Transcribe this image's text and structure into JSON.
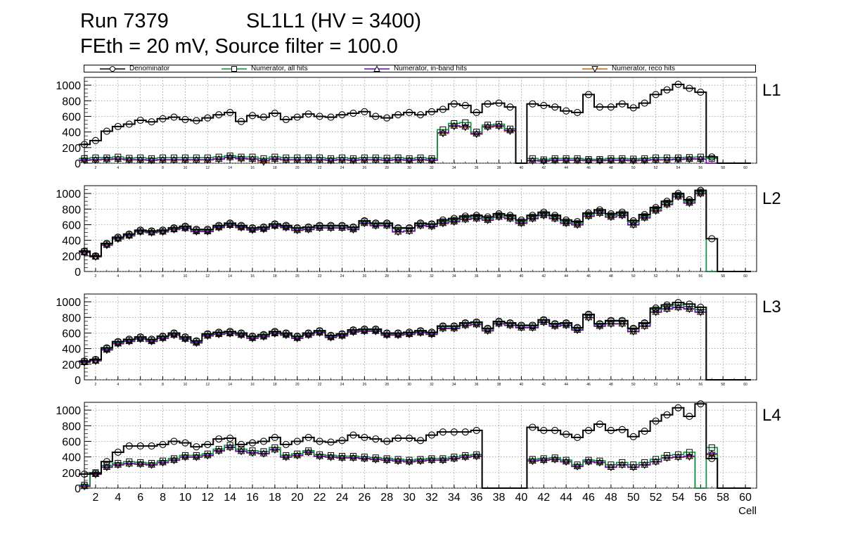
{
  "title": {
    "run": "Run 7379",
    "sl": "SL1L1 (HV = 3400)",
    "settings": "FEth = 20 mV, Source filter = 100.0"
  },
  "legend": [
    {
      "label": "Denominator",
      "color": "#000000",
      "marker": "circle"
    },
    {
      "label": "Numerator, all hits",
      "color": "#009933",
      "marker": "square"
    },
    {
      "label": "Numerator, in-band hits",
      "color": "#6600cc",
      "marker": "triangle-up"
    },
    {
      "label": "Numerator, reco hits",
      "color": "#cc6600",
      "marker": "triangle-down"
    }
  ],
  "chart_data": {
    "type": "step-histogram",
    "xlabel": "Cell",
    "xlim": [
      1,
      61
    ],
    "ylim": [
      0,
      1100
    ],
    "yticks": [
      0,
      200,
      400,
      600,
      800,
      1000
    ],
    "xticks": [
      2,
      4,
      6,
      8,
      10,
      12,
      14,
      16,
      18,
      20,
      22,
      24,
      26,
      28,
      30,
      32,
      34,
      36,
      38,
      40,
      42,
      44,
      46,
      48,
      50,
      52,
      54,
      56,
      58,
      60
    ],
    "cells": [
      1,
      2,
      3,
      4,
      5,
      6,
      7,
      8,
      9,
      10,
      11,
      12,
      13,
      14,
      15,
      16,
      17,
      18,
      19,
      20,
      21,
      22,
      23,
      24,
      25,
      26,
      27,
      28,
      29,
      30,
      31,
      32,
      33,
      34,
      35,
      36,
      37,
      38,
      39,
      40,
      41,
      42,
      43,
      44,
      45,
      46,
      47,
      48,
      49,
      50,
      51,
      52,
      53,
      54,
      55,
      56,
      57,
      58,
      59,
      60
    ],
    "panels": [
      {
        "label": "L1",
        "denominator": [
          240,
          290,
          410,
          470,
          500,
          550,
          530,
          570,
          590,
          560,
          545,
          580,
          620,
          650,
          535,
          610,
          590,
          640,
          560,
          590,
          630,
          600,
          590,
          620,
          640,
          660,
          600,
          580,
          620,
          650,
          620,
          660,
          690,
          760,
          740,
          650,
          760,
          770,
          720,
          0,
          760,
          740,
          720,
          670,
          650,
          880,
          720,
          720,
          760,
          710,
          770,
          880,
          940,
          1010,
          960,
          910,
          80,
          0,
          0,
          0
        ],
        "numerator_all": [
          60,
          70,
          70,
          80,
          65,
          70,
          60,
          70,
          70,
          70,
          70,
          70,
          80,
          95,
          80,
          80,
          60,
          80,
          70,
          70,
          70,
          70,
          60,
          70,
          60,
          70,
          70,
          65,
          70,
          60,
          70,
          60,
          430,
          510,
          520,
          400,
          490,
          500,
          440,
          0,
          60,
          45,
          60,
          60,
          60,
          50,
          50,
          60,
          60,
          55,
          60,
          70,
          70,
          70,
          75,
          80,
          60,
          0,
          0,
          0
        ],
        "numerator_inband": [
          40,
          45,
          50,
          55,
          45,
          45,
          40,
          45,
          45,
          45,
          45,
          45,
          55,
          75,
          60,
          55,
          35,
          55,
          45,
          45,
          45,
          45,
          40,
          45,
          40,
          45,
          45,
          40,
          45,
          40,
          45,
          40,
          390,
          480,
          470,
          380,
          470,
          480,
          420,
          0,
          35,
          30,
          40,
          40,
          40,
          35,
          35,
          40,
          40,
          35,
          40,
          45,
          45,
          50,
          55,
          55,
          0,
          0,
          0,
          0
        ],
        "numerator_reco": [
          35,
          40,
          45,
          50,
          40,
          40,
          35,
          40,
          40,
          40,
          40,
          40,
          50,
          70,
          55,
          50,
          15,
          50,
          40,
          40,
          40,
          40,
          35,
          40,
          35,
          40,
          40,
          35,
          40,
          35,
          40,
          35,
          380,
          470,
          460,
          370,
          460,
          470,
          410,
          0,
          30,
          25,
          35,
          35,
          35,
          30,
          30,
          35,
          35,
          30,
          35,
          40,
          40,
          45,
          50,
          50,
          0,
          0,
          0,
          0
        ]
      },
      {
        "label": "L2",
        "denominator": [
          260,
          200,
          360,
          440,
          480,
          530,
          520,
          530,
          560,
          580,
          540,
          540,
          590,
          620,
          590,
          560,
          570,
          610,
          590,
          560,
          570,
          590,
          590,
          590,
          570,
          650,
          620,
          620,
          560,
          560,
          620,
          610,
          660,
          680,
          710,
          720,
          700,
          740,
          720,
          660,
          720,
          760,
          720,
          660,
          640,
          750,
          790,
          740,
          760,
          650,
          730,
          820,
          900,
          1000,
          920,
          1040,
          420,
          0,
          0,
          0
        ],
        "numerator_all": [
          255,
          195,
          350,
          430,
          470,
          520,
          510,
          520,
          550,
          570,
          530,
          530,
          580,
          610,
          580,
          550,
          560,
          600,
          580,
          550,
          560,
          580,
          580,
          580,
          560,
          640,
          610,
          610,
          550,
          550,
          610,
          600,
          640,
          660,
          690,
          700,
          680,
          720,
          700,
          640,
          700,
          740,
          700,
          640,
          620,
          730,
          770,
          720,
          740,
          630,
          710,
          800,
          880,
          980,
          900,
          1020,
          0,
          0,
          0,
          0
        ],
        "numerator_inband": [
          245,
          190,
          340,
          420,
          460,
          510,
          500,
          510,
          540,
          555,
          515,
          515,
          565,
          595,
          565,
          535,
          545,
          585,
          565,
          530,
          540,
          560,
          560,
          560,
          540,
          620,
          590,
          590,
          510,
          520,
          590,
          580,
          620,
          640,
          670,
          680,
          660,
          700,
          680,
          620,
          680,
          720,
          680,
          620,
          600,
          710,
          750,
          700,
          720,
          600,
          690,
          780,
          860,
          960,
          880,
          1000,
          0,
          0,
          0,
          0
        ],
        "numerator_reco": [
          240,
          185,
          335,
          415,
          455,
          505,
          495,
          505,
          535,
          550,
          510,
          510,
          560,
          590,
          560,
          530,
          540,
          580,
          560,
          525,
          535,
          555,
          555,
          555,
          535,
          615,
          585,
          585,
          505,
          515,
          585,
          575,
          615,
          635,
          665,
          675,
          655,
          695,
          675,
          615,
          675,
          715,
          675,
          615,
          595,
          705,
          745,
          695,
          715,
          595,
          685,
          775,
          855,
          955,
          875,
          995,
          0,
          0,
          0,
          0
        ]
      },
      {
        "label": "L3",
        "denominator": [
          240,
          260,
          410,
          490,
          520,
          550,
          520,
          560,
          600,
          550,
          500,
          590,
          610,
          620,
          600,
          560,
          580,
          620,
          600,
          560,
          600,
          630,
          570,
          590,
          640,
          650,
          650,
          600,
          600,
          610,
          630,
          610,
          690,
          690,
          730,
          740,
          660,
          750,
          730,
          700,
          700,
          770,
          720,
          730,
          670,
          840,
          720,
          760,
          760,
          660,
          730,
          920,
          960,
          990,
          970,
          930,
          0,
          0,
          0,
          0
        ],
        "numerator_all": [
          235,
          255,
          400,
          480,
          510,
          540,
          510,
          550,
          590,
          540,
          490,
          580,
          600,
          610,
          590,
          550,
          570,
          610,
          590,
          550,
          590,
          620,
          560,
          580,
          630,
          640,
          640,
          590,
          590,
          600,
          620,
          600,
          680,
          680,
          720,
          730,
          650,
          740,
          720,
          690,
          690,
          760,
          710,
          720,
          660,
          830,
          710,
          750,
          750,
          650,
          720,
          900,
          940,
          960,
          940,
          900,
          0,
          0,
          0,
          0
        ],
        "numerator_inband": [
          225,
          245,
          385,
          465,
          495,
          525,
          495,
          535,
          575,
          525,
          475,
          565,
          585,
          595,
          575,
          535,
          555,
          595,
          575,
          535,
          575,
          605,
          545,
          565,
          615,
          625,
          625,
          575,
          575,
          585,
          605,
          585,
          660,
          660,
          700,
          710,
          630,
          720,
          700,
          670,
          670,
          740,
          690,
          700,
          640,
          800,
          690,
          720,
          720,
          620,
          690,
          870,
          910,
          930,
          910,
          870,
          0,
          0,
          0,
          0
        ],
        "numerator_reco": [
          220,
          240,
          380,
          460,
          490,
          520,
          490,
          530,
          570,
          520,
          470,
          560,
          580,
          590,
          570,
          530,
          550,
          590,
          570,
          530,
          570,
          600,
          540,
          560,
          610,
          620,
          620,
          570,
          570,
          580,
          600,
          580,
          655,
          655,
          695,
          705,
          625,
          715,
          695,
          665,
          665,
          735,
          685,
          695,
          635,
          795,
          685,
          715,
          715,
          615,
          685,
          865,
          905,
          925,
          905,
          865,
          0,
          0,
          0,
          0
        ]
      },
      {
        "label": "L4",
        "denominator": [
          180,
          190,
          340,
          460,
          540,
          540,
          540,
          560,
          600,
          580,
          530,
          560,
          630,
          640,
          560,
          580,
          600,
          650,
          560,
          600,
          650,
          600,
          590,
          610,
          680,
          650,
          630,
          600,
          640,
          640,
          610,
          680,
          720,
          720,
          720,
          740,
          0,
          0,
          0,
          0,
          780,
          740,
          740,
          690,
          650,
          740,
          820,
          740,
          750,
          660,
          730,
          860,
          940,
          1030,
          920,
          1080,
          380,
          0,
          0,
          0
        ],
        "numerator_all": [
          40,
          200,
          290,
          320,
          340,
          330,
          320,
          350,
          380,
          420,
          420,
          440,
          500,
          550,
          500,
          480,
          470,
          520,
          420,
          440,
          480,
          430,
          420,
          410,
          410,
          400,
          390,
          380,
          370,
          360,
          370,
          380,
          380,
          400,
          420,
          430,
          0,
          0,
          0,
          0,
          370,
          380,
          390,
          360,
          300,
          360,
          350,
          300,
          330,
          300,
          330,
          370,
          420,
          430,
          460,
          0,
          520,
          0,
          0,
          0
        ],
        "numerator_inband": [
          25,
          180,
          270,
          300,
          315,
          310,
          300,
          330,
          360,
          400,
          400,
          420,
          480,
          525,
          475,
          455,
          445,
          495,
          400,
          420,
          460,
          410,
          400,
          390,
          390,
          380,
          370,
          360,
          350,
          340,
          350,
          360,
          360,
          380,
          400,
          410,
          0,
          0,
          0,
          0,
          350,
          360,
          370,
          340,
          280,
          340,
          330,
          270,
          300,
          270,
          300,
          340,
          390,
          400,
          410,
          0,
          440,
          0,
          0,
          0
        ],
        "numerator_reco": [
          20,
          175,
          265,
          295,
          310,
          305,
          295,
          325,
          355,
          395,
          395,
          415,
          475,
          520,
          470,
          450,
          440,
          490,
          395,
          415,
          455,
          405,
          395,
          385,
          385,
          375,
          365,
          355,
          345,
          335,
          345,
          355,
          355,
          375,
          395,
          405,
          0,
          0,
          0,
          0,
          345,
          355,
          365,
          335,
          275,
          335,
          325,
          265,
          295,
          265,
          295,
          335,
          385,
          395,
          400,
          0,
          430,
          0,
          0,
          0
        ]
      }
    ]
  }
}
